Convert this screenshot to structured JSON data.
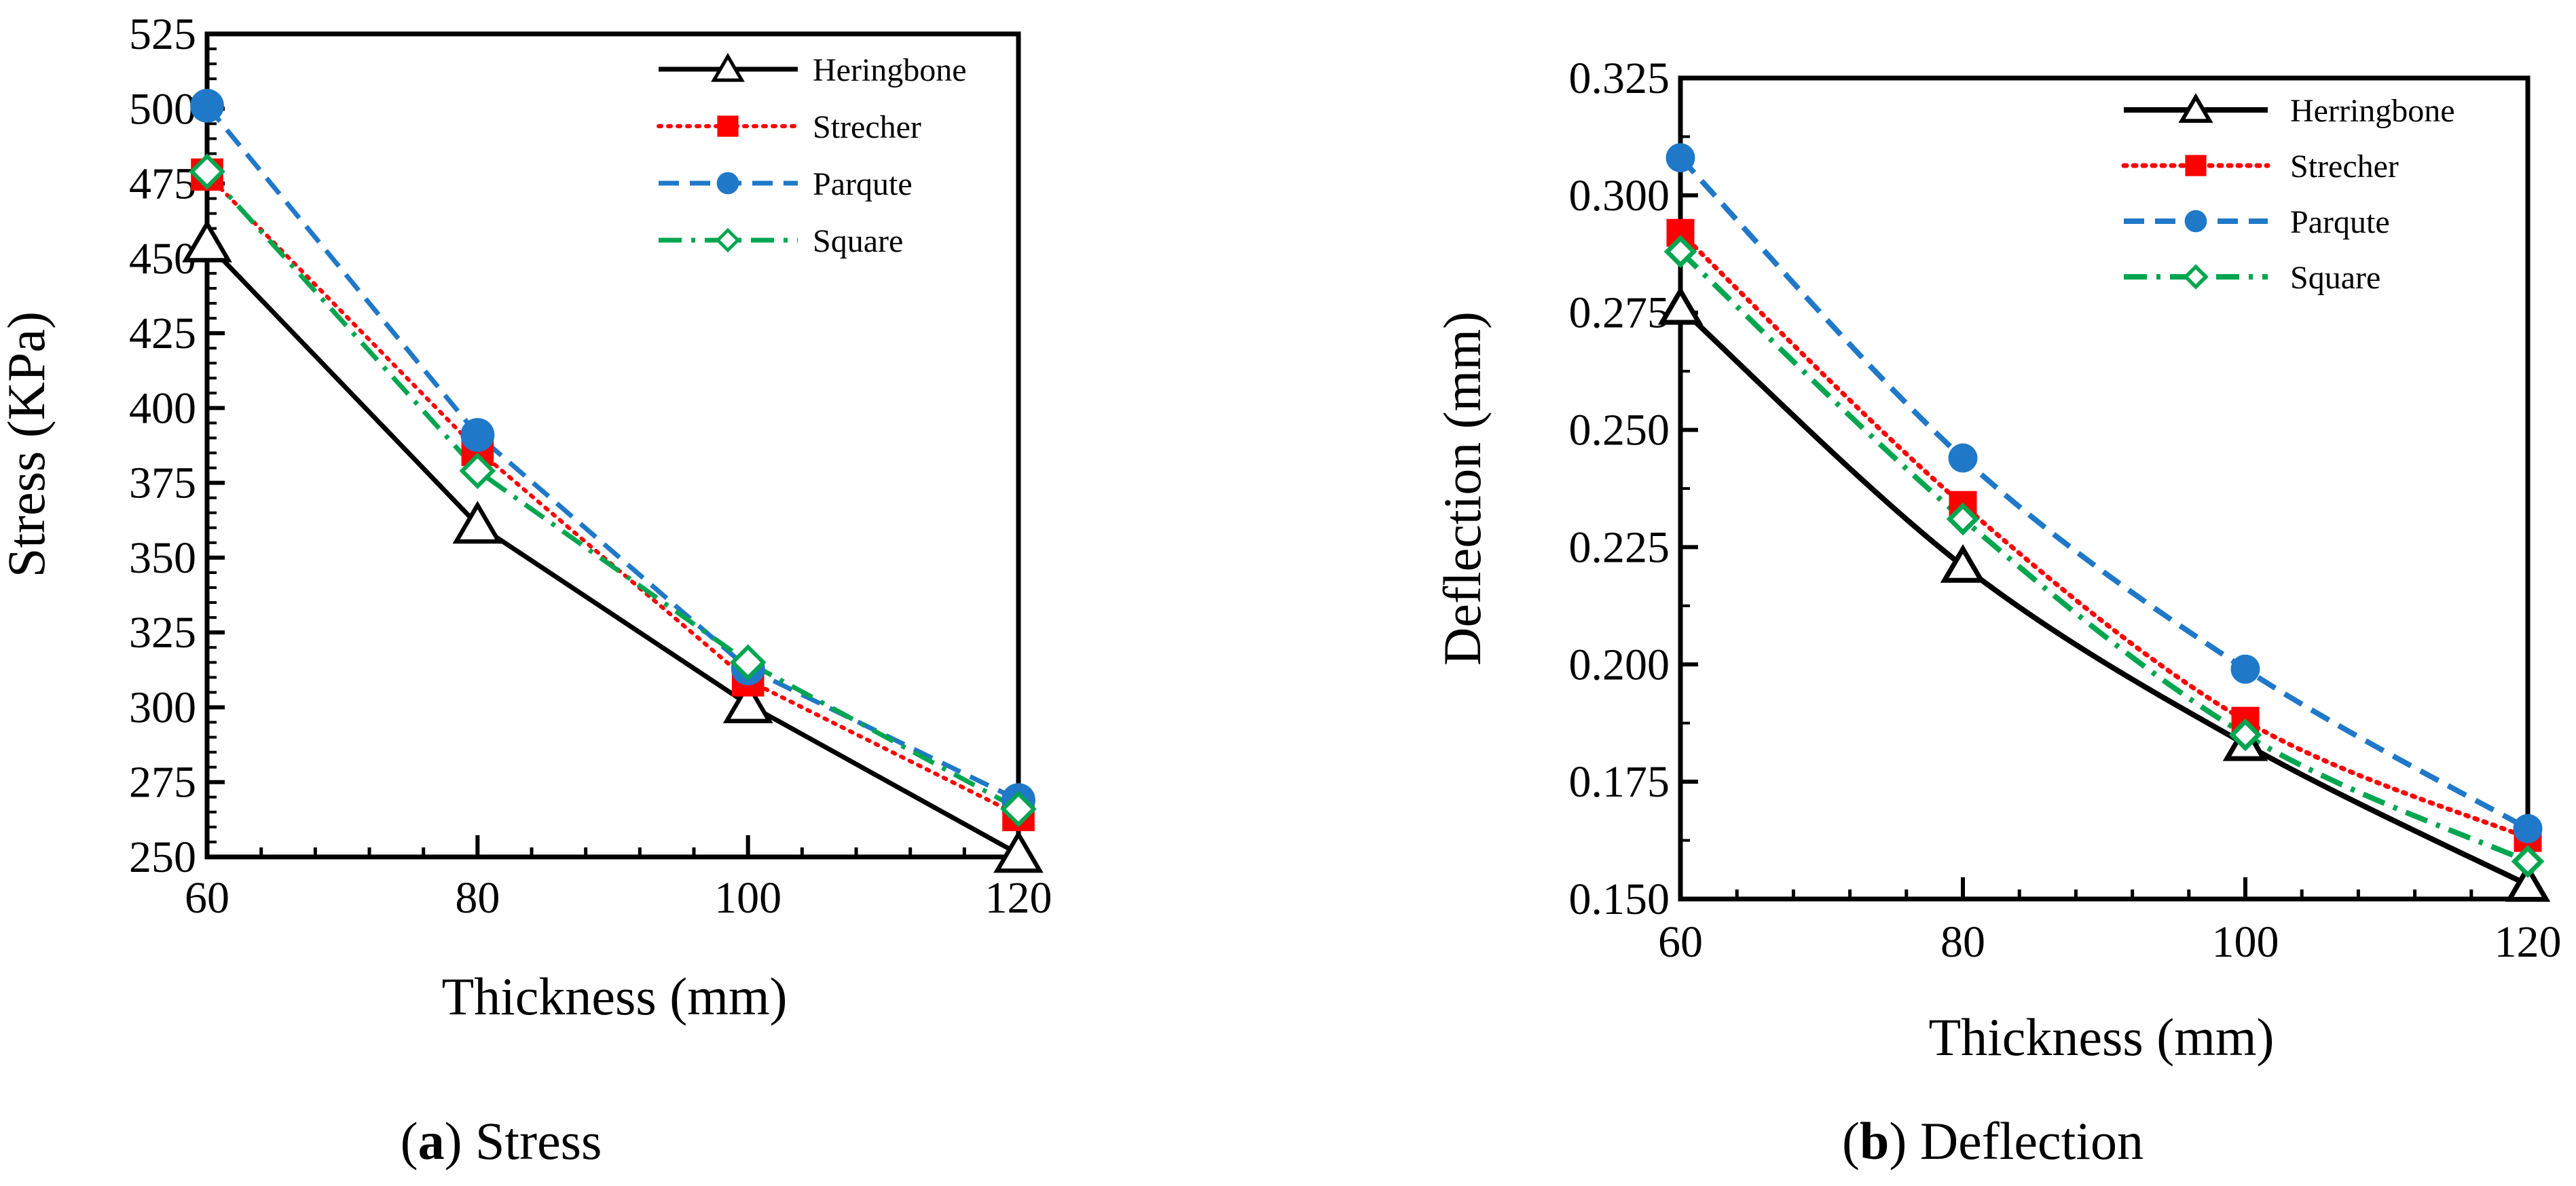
{
  "figure": {
    "caption_a": {
      "open": "(",
      "letter": "a",
      "close": ") Stress"
    },
    "caption_b": {
      "open": "(",
      "letter": "b",
      "close": ") Deflection"
    }
  },
  "chart_data": [
    {
      "type": "line",
      "panel": "a",
      "title": "",
      "xlabel": "Thickness (mm)",
      "ylabel": "Stress (KPa)",
      "x": [
        60,
        80,
        100,
        120
      ],
      "xticks": [
        60,
        80,
        100,
        120
      ],
      "xlim": [
        60,
        120
      ],
      "ylim": [
        250,
        525
      ],
      "yticks": [
        250,
        275,
        300,
        325,
        350,
        375,
        400,
        425,
        450,
        475,
        500,
        525
      ],
      "ytick_labels": [
        "250",
        "275",
        "300",
        "325",
        "350",
        "375",
        "400",
        "425",
        "450",
        "475",
        "500",
        "525"
      ],
      "grid": false,
      "legend_position": "top-right",
      "series": [
        {
          "name": "Heringbone",
          "values": [
            455,
            361,
            301,
            251
          ],
          "color": "#000000",
          "marker": "triangle-open",
          "dash": "solid"
        },
        {
          "name": "Strecher",
          "values": [
            478,
            386,
            309,
            264
          ],
          "color": "#ff0000",
          "marker": "square-filled",
          "dash": "dotted"
        },
        {
          "name": "Parqute",
          "values": [
            501,
            391,
            313,
            269
          ],
          "color": "#1f78c8",
          "marker": "circle-filled",
          "dash": "dashed"
        },
        {
          "name": "Square",
          "values": [
            479,
            379,
            315,
            266
          ],
          "color": "#00a64f",
          "marker": "diamond-open",
          "dash": "dashdot"
        }
      ]
    },
    {
      "type": "line",
      "panel": "b",
      "title": "",
      "xlabel": "Thickness (mm)",
      "ylabel": "Deflection (mm)",
      "x": [
        60,
        80,
        100,
        120
      ],
      "xticks": [
        60,
        80,
        100,
        120
      ],
      "xlim": [
        60,
        120
      ],
      "ylim": [
        0.15,
        0.325
      ],
      "yticks": [
        0.15,
        0.175,
        0.2,
        0.225,
        0.25,
        0.275,
        0.3,
        0.325
      ],
      "ytick_labels": [
        "0.150",
        "0.175",
        "0.200",
        "0.225",
        "0.250",
        "0.275",
        "0.300",
        "0.325"
      ],
      "grid": false,
      "legend_position": "top-right",
      "series": [
        {
          "name": "Herringbone",
          "values": [
            0.276,
            0.221,
            0.183,
            0.153
          ],
          "color": "#000000",
          "marker": "triangle-open",
          "dash": "solid"
        },
        {
          "name": "Strecher",
          "values": [
            0.292,
            0.234,
            0.188,
            0.163
          ],
          "color": "#ff0000",
          "marker": "square-filled",
          "dash": "dotted"
        },
        {
          "name": "Parqute",
          "values": [
            0.308,
            0.244,
            0.199,
            0.165
          ],
          "color": "#1f78c8",
          "marker": "circle-filled",
          "dash": "dashed"
        },
        {
          "name": "Square",
          "values": [
            0.288,
            0.231,
            0.185,
            0.158
          ],
          "color": "#00a64f",
          "marker": "diamond-open",
          "dash": "dashdot"
        }
      ]
    }
  ]
}
